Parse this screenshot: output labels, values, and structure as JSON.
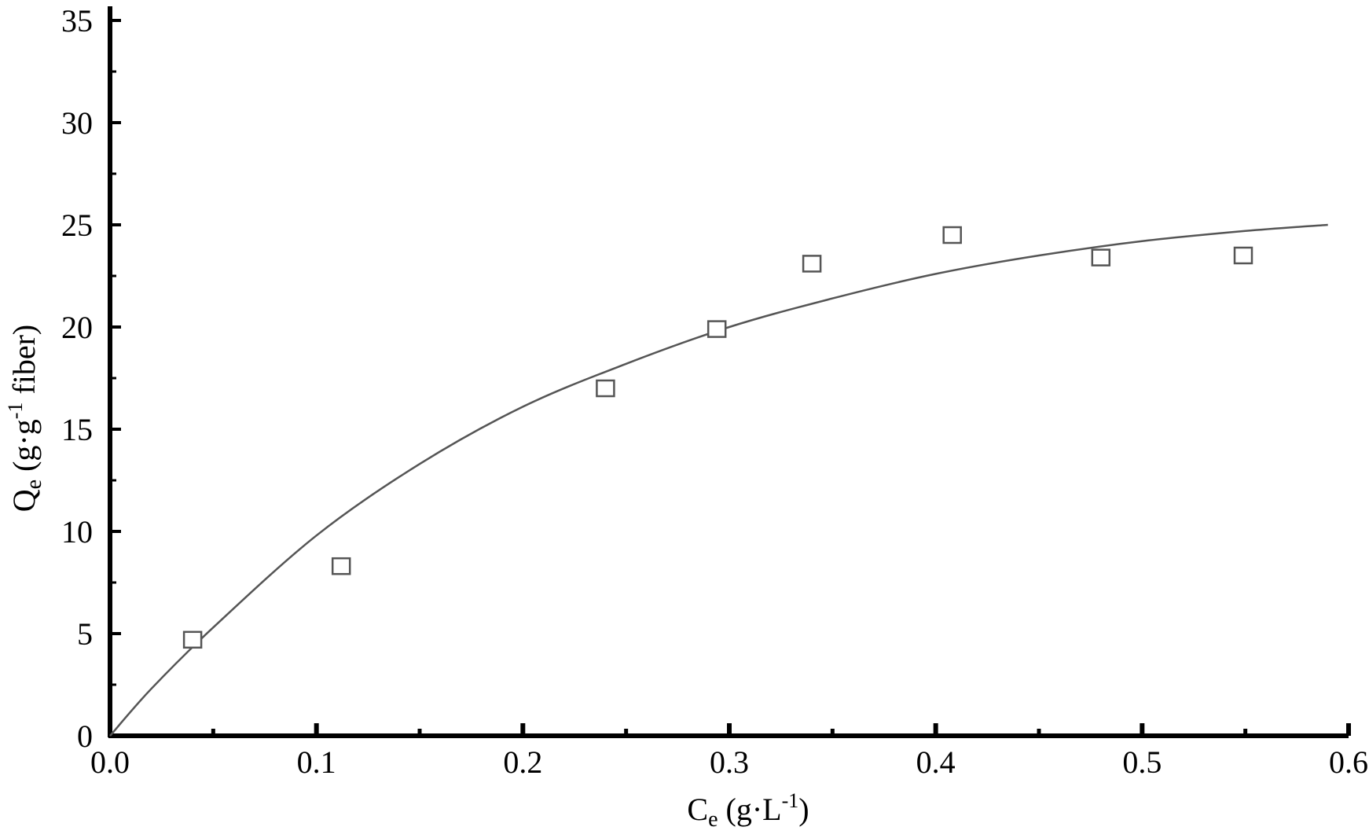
{
  "chart_data": {
    "type": "scatter",
    "xlabel": {
      "main": "C",
      "sub": "e",
      "rest": " (g·L",
      "sup": "-1",
      "end": ")"
    },
    "ylabel": {
      "main": "Q",
      "sub": "e",
      "rest": " (g·g",
      "sup": "-1",
      "end": " fiber)"
    },
    "xlim": [
      0,
      0.6
    ],
    "ylim": [
      0,
      36
    ],
    "x_ticks": [
      "0.0",
      "0.1",
      "0.2",
      "0.3",
      "0.4",
      "0.5",
      "0.6"
    ],
    "x_tick_values": [
      0,
      0.1,
      0.2,
      0.3,
      0.4,
      0.5,
      0.6
    ],
    "y_ticks": [
      "0",
      "5",
      "10",
      "15",
      "20",
      "25",
      "30",
      "35"
    ],
    "y_tick_values": [
      0,
      5,
      10,
      15,
      20,
      25,
      30,
      35
    ],
    "grid": false,
    "legend": "none",
    "series": [
      {
        "kind": "scatter",
        "marker": "open-square",
        "x": [
          0.04,
          0.112,
          0.24,
          0.294,
          0.34,
          0.408,
          0.48,
          0.549
        ],
        "y": [
          4.7,
          8.3,
          17.0,
          19.9,
          23.1,
          24.5,
          23.4,
          23.5
        ]
      },
      {
        "kind": "line",
        "x": [
          0.0,
          0.02,
          0.05,
          0.1,
          0.15,
          0.2,
          0.25,
          0.3,
          0.35,
          0.4,
          0.45,
          0.5,
          0.55,
          0.59
        ],
        "y": [
          0.0,
          2.3,
          5.3,
          9.8,
          13.3,
          16.1,
          18.2,
          20.0,
          21.4,
          22.6,
          23.5,
          24.2,
          24.7,
          25.0
        ]
      }
    ],
    "colors": {
      "axis": "#000000",
      "marker": "#555555",
      "line": "#555555"
    }
  }
}
